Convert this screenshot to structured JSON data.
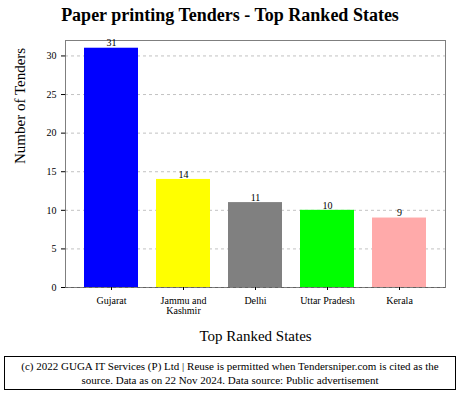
{
  "chart_data": {
    "type": "bar",
    "title": "Paper printing  Tenders - Top Ranked States",
    "x_label": "Top Ranked States",
    "y_label": "Number of Tenders",
    "categories": [
      "Gujarat",
      "Jammu and Kashmir",
      "Delhi",
      "Uttar Pradesh",
      "Kerala"
    ],
    "values": [
      31,
      14,
      11,
      10,
      9
    ],
    "colors": [
      "#0000ff",
      "#ffff00",
      "#808080",
      "#00ff00",
      "#ffaaaa"
    ],
    "ylim": [
      0,
      32
    ],
    "yticks": [
      0,
      5,
      10,
      15,
      20,
      25,
      30
    ],
    "grid": true,
    "data_labels": true,
    "caption": "(c) 2022 GUGA IT Services (P) Ltd | Reuse is permitted when Tendersniper.com is cited as the source. Data as on 22 Nov 2024. Data source: Public advertisement"
  }
}
